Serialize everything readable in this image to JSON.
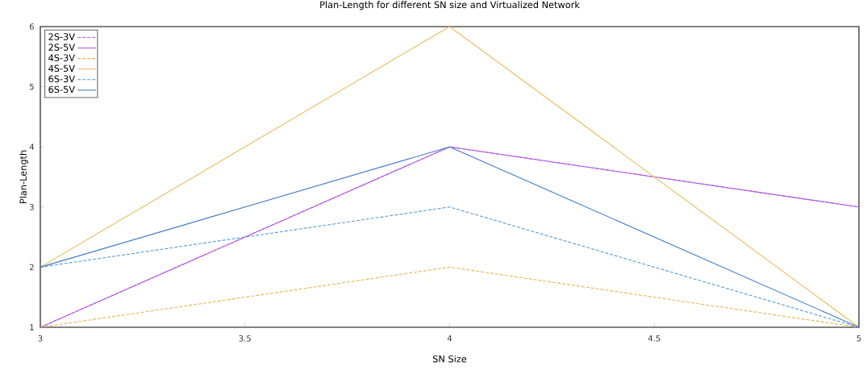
{
  "chart_data": {
    "type": "line",
    "title": "Plan-Length for different SN size and Virtualized Network",
    "xlabel": "SN Size",
    "ylabel": "Plan-Length",
    "x": [
      3,
      4,
      5
    ],
    "xlim": [
      3,
      5
    ],
    "xticks": [
      3,
      3.5,
      4,
      4.5,
      5
    ],
    "ylim": [
      1,
      6
    ],
    "yticks": [
      1,
      2,
      3,
      4,
      5,
      6
    ],
    "legend": "top left",
    "series": [
      {
        "name": "2S-3V",
        "color": "#b45ae0",
        "line_style": "dashed",
        "values": [
          1,
          4,
          3
        ]
      },
      {
        "name": "2S-5V",
        "color": "#b45ae0",
        "line_style": "solid",
        "values": [
          1,
          4,
          3
        ]
      },
      {
        "name": "4S-3V",
        "color": "#e8b24a",
        "line_style": "dashed",
        "values": [
          1,
          2,
          1
        ]
      },
      {
        "name": "4S-5V",
        "color": "#e8bc5a",
        "line_style": "solid",
        "values": [
          2,
          6,
          1
        ]
      },
      {
        "name": "6S-3V",
        "color": "#4f9ad6",
        "line_style": "dashed",
        "values": [
          2,
          3,
          1
        ]
      },
      {
        "name": "6S-5V",
        "color": "#3c78c8",
        "line_style": "solid",
        "values": [
          2,
          4,
          1
        ]
      }
    ]
  }
}
